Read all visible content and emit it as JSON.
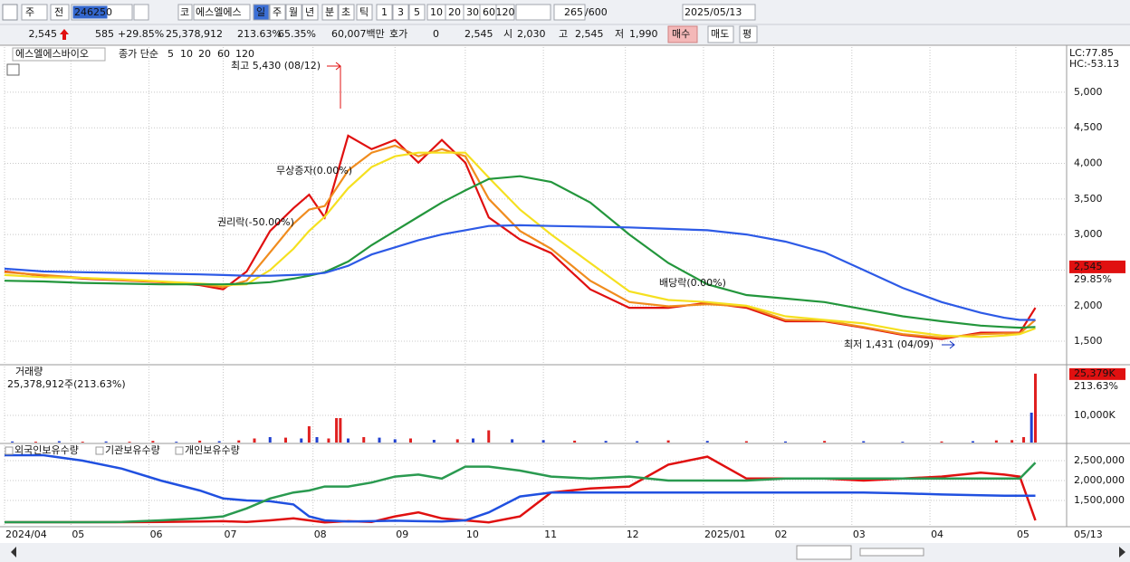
{
  "toolbar": {
    "period": "주",
    "adj": "전",
    "code": "246250",
    "market": "코",
    "name": "에스엘에스",
    "intervals": [
      "일",
      "주",
      "월",
      "년",
      "분",
      "초",
      "틱"
    ],
    "counts": [
      "1",
      "3",
      "5",
      "10",
      "20",
      "30",
      "60",
      "120"
    ],
    "bars": "265",
    "max_bars": "/600",
    "date": "2025/05/13"
  },
  "quote": {
    "price": "2,545",
    "change": "585",
    "rate": "+29.85%",
    "volume": "25,378,912",
    "volume_rate": "213.63%",
    "turnover": "65.35%",
    "amount": "60,007백만",
    "ask_label": "호가",
    "ask": "0",
    "ask_price": "2,545",
    "open_label": "시",
    "open": "2,030",
    "high_label": "고",
    "high": "2,545",
    "low_label": "저",
    "low": "1,990",
    "buy": "매수",
    "sell": "매도",
    "eval": "평"
  },
  "chart_data": [
    {
      "type": "line",
      "title": "에스엘에스바이오",
      "subtitle": "종가 단순",
      "x": [
        0,
        10,
        20,
        30,
        40,
        50,
        56,
        62,
        68,
        74,
        78,
        82,
        88,
        94,
        100,
        106,
        112,
        118,
        124,
        132,
        140,
        150,
        160,
        170,
        180,
        190,
        200,
        210,
        220,
        230,
        240,
        250,
        256,
        260,
        264
      ],
      "xlim": [
        0,
        272
      ],
      "ylim": [
        1170,
        5635
      ],
      "yticks": [
        {
          "value": 1500,
          "label": "1,500"
        },
        {
          "value": 2000,
          "label": "2,000"
        },
        {
          "value": 2500,
          "label": "2,500"
        },
        {
          "value": 3000,
          "label": "3,000"
        },
        {
          "value": 3500,
          "label": "3,500"
        },
        {
          "value": 4000,
          "label": "4,000"
        },
        {
          "value": 4500,
          "label": "4,500"
        },
        {
          "value": 5000,
          "label": "5,000"
        }
      ],
      "grid": true,
      "series": [
        {
          "name": "5",
          "color": "#e01010",
          "values": [
            2480,
            2420,
            2380,
            2355,
            2330,
            2290,
            2230,
            2480,
            3050,
            3370,
            3560,
            3240,
            4390,
            4200,
            4330,
            4010,
            4330,
            4010,
            3240,
            2930,
            2740,
            2230,
            1970,
            1970,
            2040,
            1970,
            1780,
            1780,
            1690,
            1590,
            1530,
            1620,
            1620,
            1620,
            1970
          ]
        },
        {
          "name": "10",
          "color": "#f08c1e",
          "values": [
            2470,
            2430,
            2390,
            2360,
            2335,
            2300,
            2260,
            2350,
            2750,
            3150,
            3350,
            3400,
            3900,
            4150,
            4250,
            4100,
            4200,
            4100,
            3500,
            3050,
            2800,
            2350,
            2050,
            1990,
            2020,
            1990,
            1800,
            1790,
            1700,
            1600,
            1550,
            1600,
            1610,
            1610,
            1800
          ]
        },
        {
          "name": "20",
          "color": "#f5e020",
          "values": [
            2430,
            2400,
            2390,
            2370,
            2340,
            2310,
            2290,
            2300,
            2500,
            2800,
            3050,
            3250,
            3650,
            3950,
            4100,
            4150,
            4150,
            4150,
            3800,
            3350,
            3000,
            2600,
            2200,
            2080,
            2050,
            2000,
            1850,
            1800,
            1750,
            1650,
            1580,
            1560,
            1580,
            1600,
            1680
          ]
        },
        {
          "name": "60",
          "color": "#23963c",
          "values": [
            2350,
            2340,
            2320,
            2310,
            2300,
            2300,
            2300,
            2310,
            2330,
            2380,
            2420,
            2470,
            2620,
            2850,
            3050,
            3250,
            3450,
            3620,
            3780,
            3820,
            3740,
            3450,
            3000,
            2600,
            2300,
            2150,
            2100,
            2050,
            1950,
            1850,
            1780,
            1720,
            1700,
            1690,
            1700
          ]
        },
        {
          "name": "120",
          "color": "#2d5ae6",
          "values": [
            2520,
            2480,
            2470,
            2460,
            2450,
            2440,
            2430,
            2420,
            2420,
            2430,
            2440,
            2460,
            2560,
            2720,
            2820,
            2920,
            3000,
            3060,
            3120,
            3130,
            3120,
            3110,
            3100,
            3080,
            3060,
            3000,
            2900,
            2750,
            2500,
            2250,
            2050,
            1900,
            1830,
            1800,
            1800
          ]
        }
      ],
      "current_value": 2545,
      "current_label": "2,545",
      "current_rate": "29.85%",
      "lc": "LC:77.85",
      "hc": "HC:-53.13",
      "annotations": [
        "최고 5,430 (08/12)",
        "무상증자(0.00%)",
        "권리락(-50.00%)",
        "배당락(0.00%)",
        "최저 1,431 (04/09)"
      ]
    },
    {
      "type": "bar",
      "title": "거래량",
      "subtitle": "25,378,912주(213.63%)",
      "x": [
        2,
        8,
        14,
        20,
        26,
        32,
        38,
        44,
        50,
        55,
        60,
        64,
        68,
        72,
        76,
        78,
        80,
        83,
        85,
        86,
        88,
        92,
        96,
        100,
        104,
        110,
        116,
        120,
        124,
        130,
        138,
        146,
        154,
        162,
        170,
        180,
        190,
        200,
        210,
        220,
        230,
        240,
        248,
        254,
        258,
        261,
        263,
        264
      ],
      "values": [
        400,
        300,
        500,
        300,
        400,
        300,
        600,
        300,
        700,
        500,
        800,
        1500,
        2000,
        1800,
        1500,
        6000,
        2000,
        1500,
        9000,
        9000,
        1500,
        2000,
        1800,
        1200,
        1500,
        1000,
        1200,
        1500,
        4500,
        1200,
        900,
        700,
        600,
        500,
        800,
        600,
        500,
        400,
        600,
        500,
        300,
        400,
        500,
        800,
        900,
        2000,
        11000,
        25379
      ],
      "colors": [
        "#2040d0",
        "#e02020",
        "#2040d0",
        "#e02020",
        "#2040d0",
        "#e02020",
        "#e02020",
        "#2040d0",
        "#e02020",
        "#2040d0",
        "#e02020",
        "#e02020",
        "#2040d0",
        "#e02020",
        "#2040d0",
        "#e02020",
        "#2040d0",
        "#e02020",
        "#e02020",
        "#e02020",
        "#2040d0",
        "#e02020",
        "#2040d0",
        "#2040d0",
        "#e02020",
        "#2040d0",
        "#e02020",
        "#2040d0",
        "#e02020",
        "#2040d0",
        "#2040d0",
        "#e02020",
        "#2040d0",
        "#2040d0",
        "#e02020",
        "#2040d0",
        "#e02020",
        "#2040d0",
        "#e02020",
        "#2040d0",
        "#2040d0",
        "#e02020",
        "#2040d0",
        "#e02020",
        "#e02020",
        "#e02020",
        "#2040d0",
        "#e02020"
      ],
      "xlim": [
        0,
        272
      ],
      "ylim": [
        0,
        28000
      ],
      "yticks": [
        {
          "value": 10000,
          "label": "10,000K"
        }
      ],
      "grid": true,
      "current_value": 25379,
      "current_label": "25,379K",
      "current_rate": "213.63%"
    },
    {
      "type": "line",
      "x": [
        0,
        10,
        20,
        30,
        40,
        50,
        56,
        62,
        68,
        74,
        78,
        82,
        88,
        94,
        100,
        106,
        112,
        118,
        124,
        132,
        140,
        150,
        160,
        170,
        180,
        190,
        200,
        210,
        220,
        230,
        240,
        250,
        256,
        260,
        264
      ],
      "xlim": [
        0,
        272
      ],
      "ylim": [
        841000,
        2886000
      ],
      "yticks": [
        {
          "value": 1500000,
          "label": "1,500,000"
        },
        {
          "value": 2000000,
          "label": "2,000,000"
        },
        {
          "value": 2500000,
          "label": "2,500,000"
        }
      ],
      "xticks": [
        {
          "value": 0,
          "label": "2024/04"
        },
        {
          "value": 17,
          "label": "05"
        },
        {
          "value": 37,
          "label": "06"
        },
        {
          "value": 56,
          "label": "07"
        },
        {
          "value": 79,
          "label": "08"
        },
        {
          "value": 100,
          "label": "09"
        },
        {
          "value": 118,
          "label": "10"
        },
        {
          "value": 138,
          "label": "11"
        },
        {
          "value": 159,
          "label": "12"
        },
        {
          "value": 179,
          "label": "2025/01"
        },
        {
          "value": 197,
          "label": "02"
        },
        {
          "value": 217,
          "label": "03"
        },
        {
          "value": 237,
          "label": "04"
        },
        {
          "value": 259,
          "label": "05"
        }
      ],
      "grid": true,
      "last_date": "05/13",
      "series": [
        {
          "name": "외국인보유수량",
          "color": "#e01010",
          "values": [
            955000,
            955000,
            955000,
            955000,
            960000,
            970000,
            980000,
            960000,
            1000000,
            1050000,
            1000000,
            950000,
            980000,
            960000,
            1100000,
            1200000,
            1050000,
            1000000,
            950000,
            1100000,
            1700000,
            1800000,
            1850000,
            2400000,
            2600000,
            2050000,
            2050000,
            2050000,
            2000000,
            2050000,
            2100000,
            2200000,
            2150000,
            2100000,
            1000000
          ]
        },
        {
          "name": "기관보유수량",
          "color": "#2050e0",
          "values": [
            2636000,
            2636000,
            2500000,
            2300000,
            2000000,
            1750000,
            1550000,
            1500000,
            1480000,
            1400000,
            1100000,
            1000000,
            970000,
            980000,
            990000,
            980000,
            970000,
            1000000,
            1200000,
            1600000,
            1700000,
            1700000,
            1700000,
            1700000,
            1700000,
            1700000,
            1700000,
            1700000,
            1700000,
            1680000,
            1650000,
            1630000,
            1620000,
            1620000,
            1620000
          ]
        },
        {
          "name": "개인보유수량",
          "color": "#2a9a50",
          "values": [
            955000,
            955000,
            955000,
            960000,
            1000000,
            1050000,
            1100000,
            1300000,
            1550000,
            1700000,
            1750000,
            1850000,
            1850000,
            1950000,
            2100000,
            2150000,
            2050000,
            2350000,
            2350000,
            2250000,
            2100000,
            2050000,
            2100000,
            2000000,
            2000000,
            2000000,
            2050000,
            2050000,
            2050000,
            2050000,
            2050000,
            2050000,
            2050000,
            2050000,
            2450000
          ]
        }
      ]
    }
  ]
}
